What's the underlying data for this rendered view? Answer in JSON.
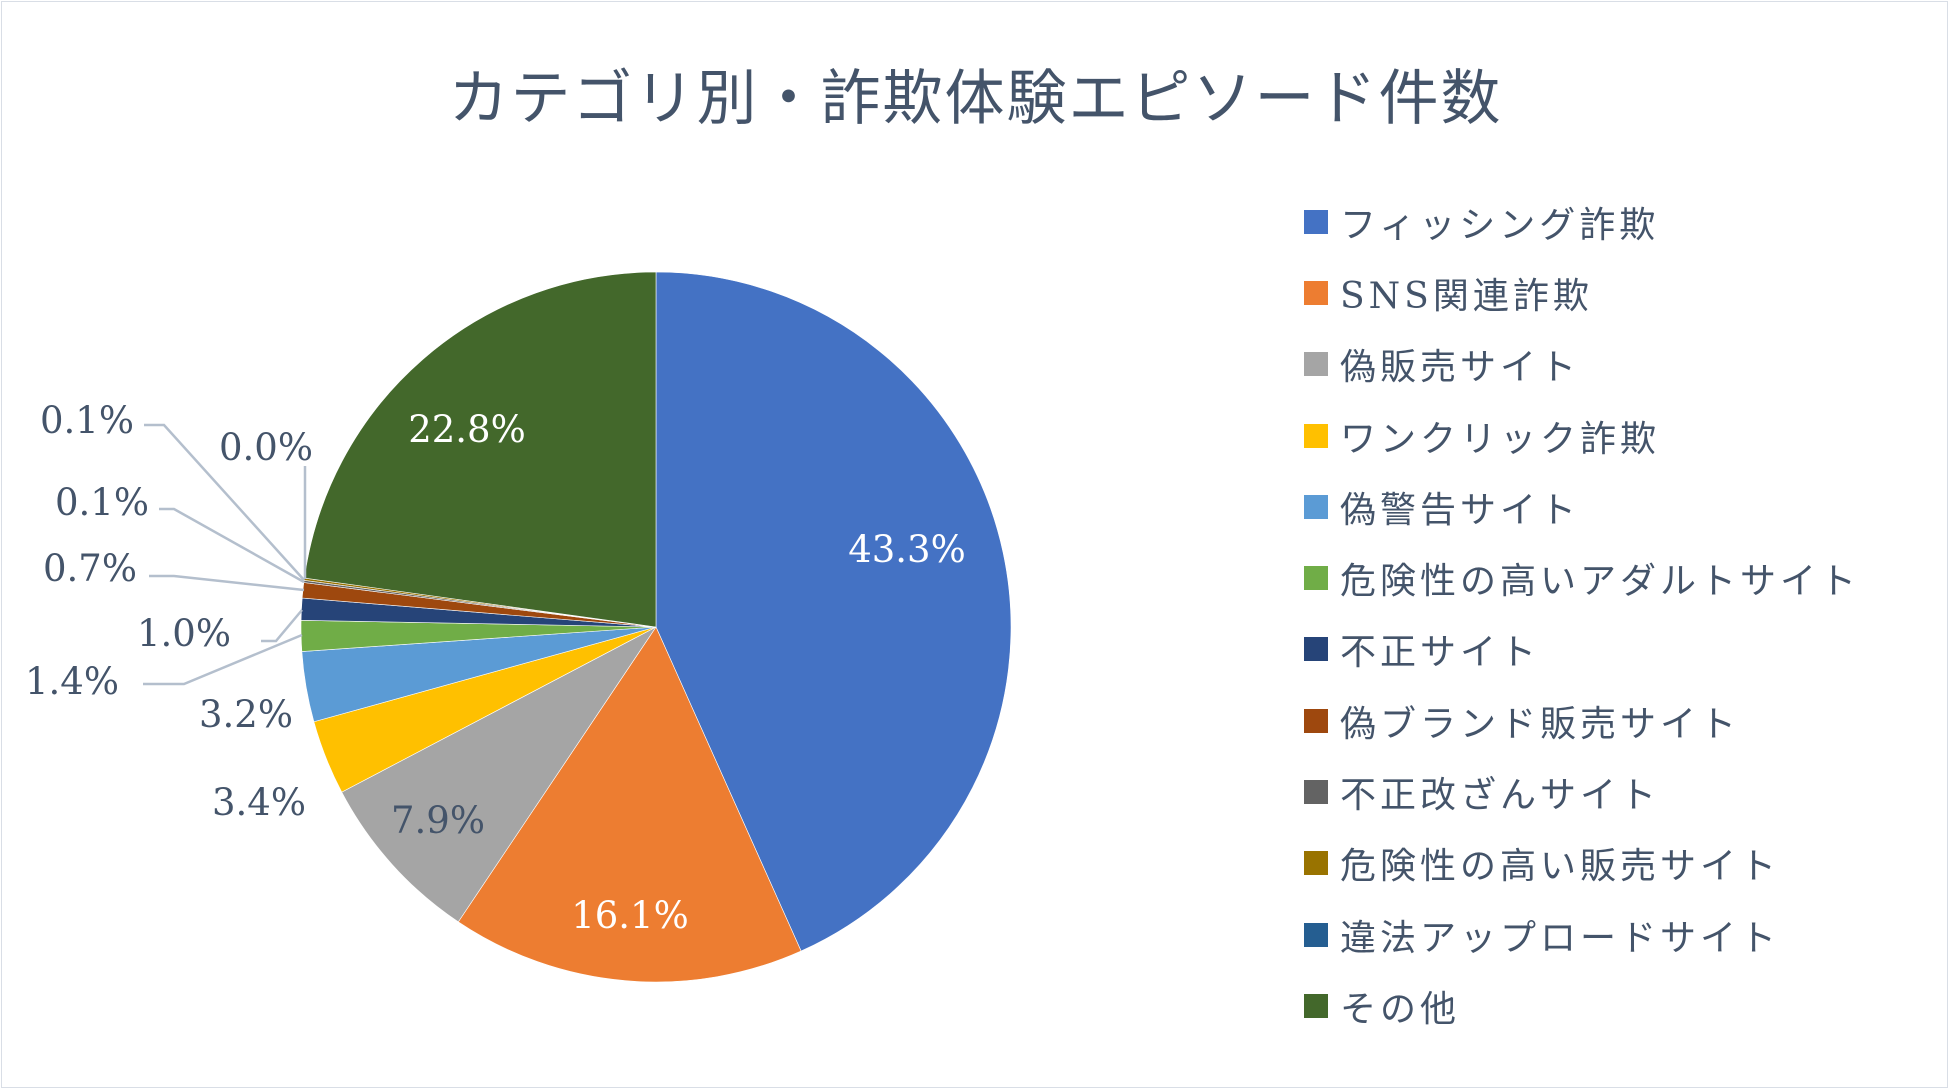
{
  "chart_data": {
    "type": "pie",
    "title": "カテゴリ別・詐欺体験エピソード件数",
    "legend_position": "right",
    "categories": [
      "フィッシング詐欺",
      "SNS関連詐欺",
      "偽販売サイト",
      "ワンクリック詐欺",
      "偽警告サイト",
      "危険性の高いアダルトサイト",
      "不正サイト",
      "偽ブランド販売サイト",
      "不正改ざんサイト",
      "危険性の高い販売サイト",
      "違法アップロードサイト",
      "その他"
    ],
    "values": [
      43.3,
      16.1,
      7.9,
      3.4,
      3.2,
      1.4,
      1.0,
      0.7,
      0.1,
      0.1,
      0.0,
      22.8
    ],
    "data_labels": [
      "43.3%",
      "16.1%",
      "7.9%",
      "3.4%",
      "3.2%",
      "1.4%",
      "1.0%",
      "0.7%",
      "0.1%",
      "0.1%",
      "0.0%",
      "22.8%"
    ],
    "colors": [
      "#4472c4",
      "#ed7d31",
      "#a5a5a5",
      "#ffc000",
      "#5b9bd5",
      "#70ad47",
      "#264478",
      "#9e480e",
      "#636363",
      "#997300",
      "#255e91",
      "#43682b"
    ],
    "label_color_outside": "#44546a",
    "label_color_inside": "#ffffff"
  }
}
